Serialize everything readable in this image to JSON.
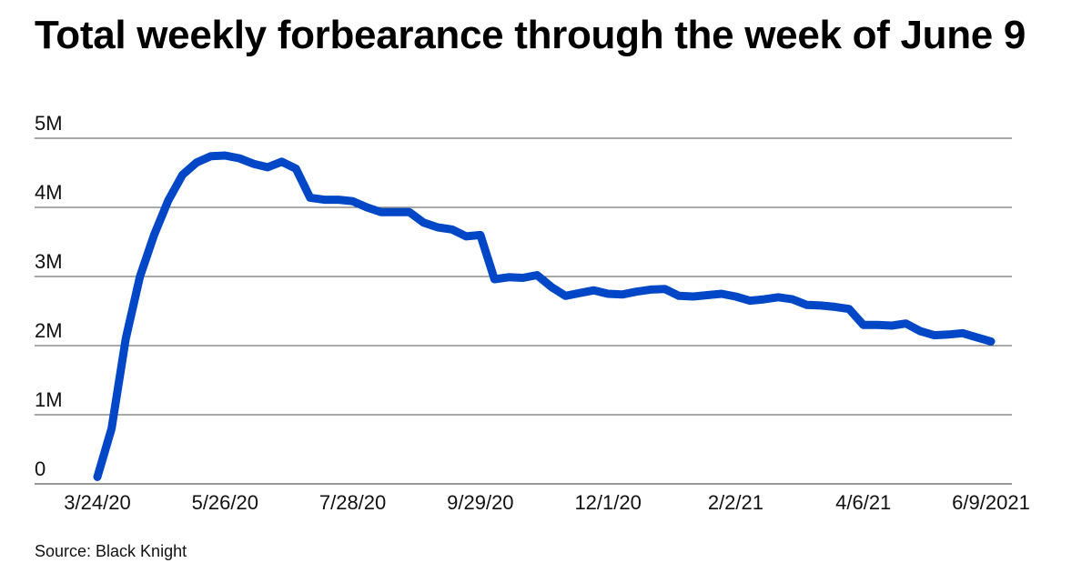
{
  "title": "Total weekly forbearance through the week of June 9",
  "source": "Source: Black Knight",
  "chart_data": {
    "type": "line",
    "title": "Total weekly forbearance through the week of June 9",
    "xlabel": "",
    "ylabel": "",
    "ylim": [
      0,
      5000000
    ],
    "y_ticks": [
      {
        "value": 0,
        "label": "0"
      },
      {
        "value": 1000000,
        "label": "1M"
      },
      {
        "value": 2000000,
        "label": "2M"
      },
      {
        "value": 3000000,
        "label": "3M"
      },
      {
        "value": 4000000,
        "label": "4M"
      },
      {
        "value": 5000000,
        "label": "5M"
      }
    ],
    "x_ticks": [
      "3/24/20",
      "5/26/20",
      "7/28/20",
      "9/29/20",
      "12/1/20",
      "2/2/21",
      "4/6/21",
      "6/9/2021"
    ],
    "grid": true,
    "line_color": "#0047c8",
    "series": [
      {
        "x": [
          "3/24/20",
          "3/31/20",
          "4/7/20",
          "4/14/20",
          "4/21/20",
          "4/28/20",
          "5/5/20",
          "5/12/20",
          "5/19/20",
          "5/26/20",
          "6/2/20",
          "6/9/20",
          "6/16/20",
          "6/23/20",
          "6/30/20",
          "7/7/20",
          "7/14/20",
          "7/21/20",
          "7/28/20",
          "8/4/20",
          "8/11/20",
          "8/18/20",
          "8/25/20",
          "9/1/20",
          "9/8/20",
          "9/15/20",
          "9/22/20",
          "9/29/20",
          "10/6/20",
          "10/13/20",
          "10/20/20",
          "10/27/20",
          "11/3/20",
          "11/10/20",
          "11/17/20",
          "11/24/20",
          "12/1/20",
          "12/8/20",
          "12/15/20",
          "12/22/20",
          "12/29/20",
          "1/5/21",
          "1/12/21",
          "1/19/21",
          "1/26/21",
          "2/2/21",
          "2/9/21",
          "2/16/21",
          "2/23/21",
          "3/2/21",
          "3/9/21",
          "3/16/21",
          "3/23/21",
          "3/30/21",
          "4/6/21",
          "4/13/21",
          "4/20/21",
          "4/27/21",
          "5/4/21",
          "5/11/21",
          "5/18/21",
          "5/25/21",
          "6/1/21",
          "6/9/21"
        ],
        "values": [
          100000,
          800000,
          2100000,
          3000000,
          3600000,
          4100000,
          4470000,
          4650000,
          4740000,
          4750000,
          4710000,
          4630000,
          4580000,
          4660000,
          4560000,
          4140000,
          4110000,
          4110000,
          4090000,
          4000000,
          3930000,
          3930000,
          3930000,
          3780000,
          3710000,
          3680000,
          3580000,
          3600000,
          2960000,
          2990000,
          2980000,
          3020000,
          2850000,
          2720000,
          2760000,
          2800000,
          2750000,
          2740000,
          2780000,
          2810000,
          2820000,
          2720000,
          2710000,
          2730000,
          2750000,
          2710000,
          2650000,
          2670000,
          2700000,
          2670000,
          2590000,
          2580000,
          2560000,
          2530000,
          2300000,
          2300000,
          2290000,
          2320000,
          2210000,
          2150000,
          2160000,
          2180000,
          2120000,
          2060000
        ]
      }
    ]
  }
}
